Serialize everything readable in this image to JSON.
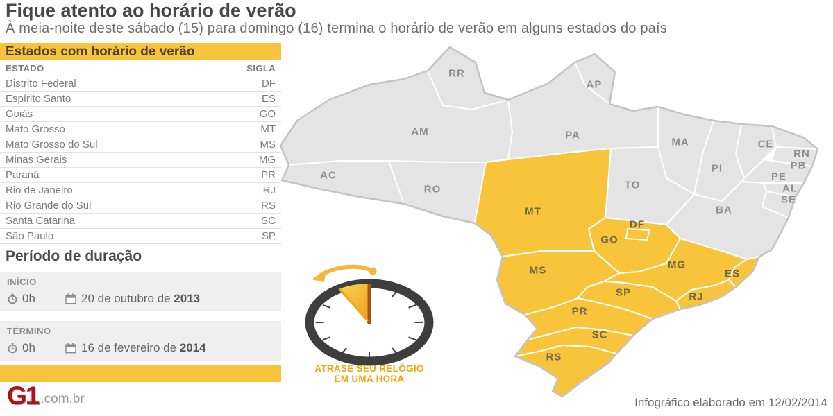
{
  "header": {
    "title": "Fique atento ao horário de verão",
    "subtitle": "À meia-noite deste sábado (15) para domingo (16) termina o horário de verão em alguns estados do país"
  },
  "states_panel": {
    "title": "Estados com horário de verão",
    "columns": {
      "state": "ESTADO",
      "code": "SIGLA"
    },
    "rows": [
      {
        "state": "Distrito Federal",
        "code": "DF"
      },
      {
        "state": "Espírito Santo",
        "code": "ES"
      },
      {
        "state": "Goiás",
        "code": "GO"
      },
      {
        "state": "Mato Grosso",
        "code": "MT"
      },
      {
        "state": "Mato Grosso do Sul",
        "code": "MS"
      },
      {
        "state": "Minas Gerais",
        "code": "MG"
      },
      {
        "state": "Paraná",
        "code": "PR"
      },
      {
        "state": "Rio de Janeiro",
        "code": "RJ"
      },
      {
        "state": "Rio Grande do Sul",
        "code": "RS"
      },
      {
        "state": "Santa Catarina",
        "code": "SC"
      },
      {
        "state": "São Paulo",
        "code": "SP"
      }
    ]
  },
  "period_panel": {
    "title": "Período de duração",
    "start": {
      "label": "INÍCIO",
      "time": "0h",
      "date": "20 de outubro de ",
      "year": "2013"
    },
    "end": {
      "label": "TÉRMINO",
      "time": "0h",
      "date": "16 de fevereiro de ",
      "year": "2014"
    }
  },
  "clock": {
    "caption_line1": "ATRASE SEU RELÓGIO",
    "caption_line2": "EM UMA HORA"
  },
  "map": {
    "states": [
      {
        "code": "RR",
        "dst": false
      },
      {
        "code": "AP",
        "dst": false
      },
      {
        "code": "AM",
        "dst": false
      },
      {
        "code": "PA",
        "dst": false
      },
      {
        "code": "MA",
        "dst": false
      },
      {
        "code": "PI",
        "dst": false
      },
      {
        "code": "CE",
        "dst": false
      },
      {
        "code": "RN",
        "dst": false
      },
      {
        "code": "PB",
        "dst": false
      },
      {
        "code": "PE",
        "dst": false
      },
      {
        "code": "AL",
        "dst": false
      },
      {
        "code": "SE",
        "dst": false
      },
      {
        "code": "TO",
        "dst": false
      },
      {
        "code": "BA",
        "dst": false
      },
      {
        "code": "AC",
        "dst": false
      },
      {
        "code": "RO",
        "dst": false
      },
      {
        "code": "MT",
        "dst": true
      },
      {
        "code": "GO",
        "dst": true
      },
      {
        "code": "MS",
        "dst": true
      },
      {
        "code": "MG",
        "dst": true
      },
      {
        "code": "ES",
        "dst": true
      },
      {
        "code": "RJ",
        "dst": true
      },
      {
        "code": "SP",
        "dst": true
      },
      {
        "code": "PR",
        "dst": true
      },
      {
        "code": "SC",
        "dst": true
      },
      {
        "code": "RS",
        "dst": true
      },
      {
        "code": "DF",
        "dst": true
      }
    ]
  },
  "footer": {
    "logo": "G1",
    "logo_suffix": ".com.br",
    "credit": "Infográfico elaborado em 12/02/2014"
  },
  "colors": {
    "accent_yellow": "#F7C43B",
    "map_gray": "#E4E4E4",
    "map_outline": "#C3C3C3",
    "gray_label": "#8E8E8E",
    "dst_label": "#6F684A",
    "logo_red": "#B01119"
  }
}
